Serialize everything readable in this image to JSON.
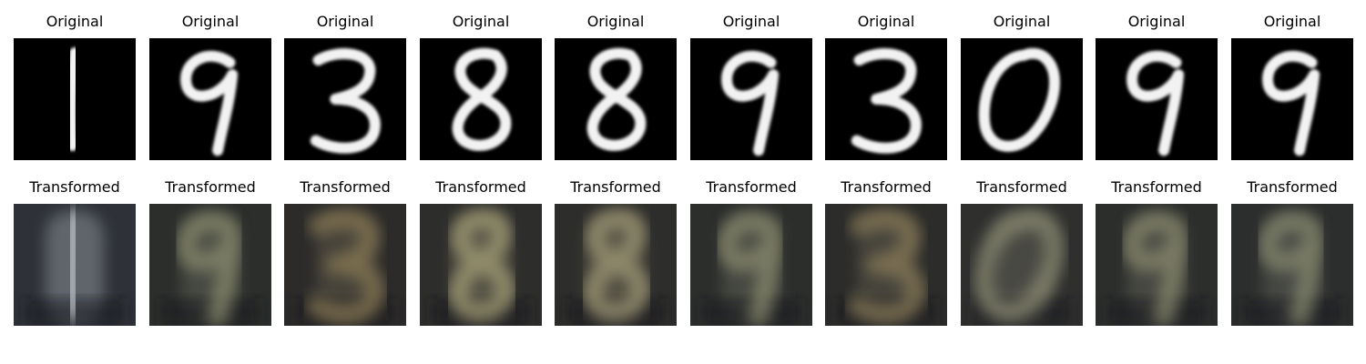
{
  "figure": {
    "rows": [
      {
        "row": "original",
        "panels": [
          {
            "title": "Original",
            "digit": "1",
            "bg": "#000000",
            "fg": "#f2f2f2"
          },
          {
            "title": "Original",
            "digit": "9",
            "bg": "#000000",
            "fg": "#f2f2f2"
          },
          {
            "title": "Original",
            "digit": "3",
            "bg": "#000000",
            "fg": "#f2f2f2"
          },
          {
            "title": "Original",
            "digit": "8",
            "bg": "#000000",
            "fg": "#f2f2f2"
          },
          {
            "title": "Original",
            "digit": "8",
            "bg": "#000000",
            "fg": "#f2f2f2"
          },
          {
            "title": "Original",
            "digit": "9",
            "bg": "#000000",
            "fg": "#f2f2f2"
          },
          {
            "title": "Original",
            "digit": "3",
            "bg": "#000000",
            "fg": "#f2f2f2"
          },
          {
            "title": "Original",
            "digit": "0",
            "bg": "#000000",
            "fg": "#f2f2f2"
          },
          {
            "title": "Original",
            "digit": "9",
            "bg": "#000000",
            "fg": "#f2f2f2"
          },
          {
            "title": "Original",
            "digit": "9",
            "bg": "#000000",
            "fg": "#f2f2f2"
          }
        ]
      },
      {
        "row": "transformed",
        "panels": [
          {
            "title": "Transformed",
            "digit": "1",
            "bg": "#2e3138",
            "fg": "#c7ccd6",
            "shade": "#8a9096"
          },
          {
            "title": "Transformed",
            "digit": "9",
            "bg": "#2b2e2b",
            "fg": "#8b8c6e",
            "shade": "#5c5e52"
          },
          {
            "title": "Transformed",
            "digit": "3",
            "bg": "#2c2b2a",
            "fg": "#8a7a55",
            "shade": "#5a5446"
          },
          {
            "title": "Transformed",
            "digit": "8",
            "bg": "#2d2d2b",
            "fg": "#a6a078",
            "shade": "#6a6652"
          },
          {
            "title": "Transformed",
            "digit": "8",
            "bg": "#2d2d2b",
            "fg": "#a39b78",
            "shade": "#66624f"
          },
          {
            "title": "Transformed",
            "digit": "9",
            "bg": "#2c2e2c",
            "fg": "#8c8c70",
            "shade": "#5c5e52"
          },
          {
            "title": "Transformed",
            "digit": "3",
            "bg": "#2c2c2a",
            "fg": "#8a7c58",
            "shade": "#5a5648"
          },
          {
            "title": "Transformed",
            "digit": "0",
            "bg": "#2f302e",
            "fg": "#8f8e76",
            "shade": "#5e5f55"
          },
          {
            "title": "Transformed",
            "digit": "9",
            "bg": "#2c2e2c",
            "fg": "#8a8a6e",
            "shade": "#5b5d52"
          },
          {
            "title": "Transformed",
            "digit": "9",
            "bg": "#2c2e2d",
            "fg": "#888a70",
            "shade": "#5a5d54"
          }
        ]
      }
    ]
  }
}
